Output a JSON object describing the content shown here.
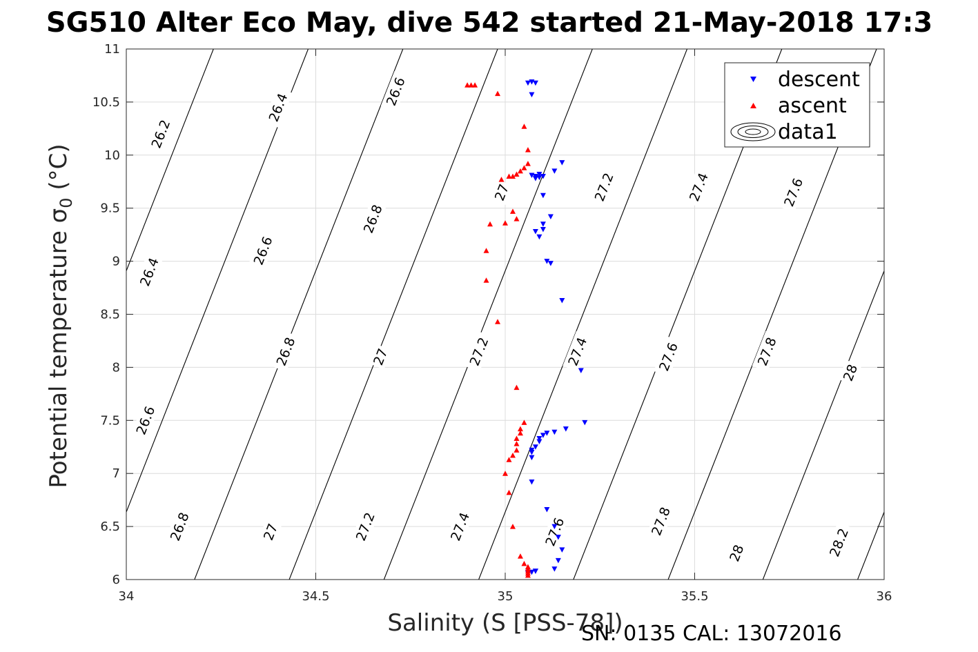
{
  "chart_data": {
    "type": "scatter",
    "title": "SG510 Alter Eco May, dive 542 started 21-May-2018 17:3",
    "xlabel": "Salinity (S [PSS-78])",
    "ylabel": "Potential temperature σ",
    "ylabel_sub": "0",
    "ylabel_unit": " (°C)",
    "footer": "SN: 0135  CAL: 13072016",
    "xlim": [
      34,
      36
    ],
    "ylim": [
      6,
      11
    ],
    "xticks": [
      34,
      34.5,
      35,
      35.5,
      36
    ],
    "xtick_labels": [
      "34",
      "34.5",
      "35",
      "35.5",
      "36"
    ],
    "yticks": [
      6,
      6.5,
      7,
      7.5,
      8,
      8.5,
      9,
      9.5,
      10,
      10.5,
      11
    ],
    "ytick_labels": [
      "6",
      "6.5",
      "7",
      "7.5",
      "8",
      "8.5",
      "9",
      "9.5",
      "10",
      "10.5",
      "11"
    ],
    "grid": true,
    "legend_position": "top-right",
    "legend": [
      "descent",
      "ascent",
      "data1"
    ],
    "colors": {
      "descent": "#0000ff",
      "ascent": "#ff0000",
      "contour": "#000000",
      "grid": "#dcdcdc"
    },
    "contours": {
      "levels": [
        26.2,
        26.4,
        26.6,
        26.8,
        27,
        27.2,
        27.4,
        27.6,
        27.8,
        28,
        28.2
      ],
      "salinity_at_theta6": [
        33.43,
        33.68,
        33.93,
        34.18,
        34.43,
        34.68,
        34.93,
        35.18,
        35.43,
        35.68,
        35.93
      ],
      "ds_dtheta": 0.11,
      "labels": [
        {
          "text": "26.2",
          "s": 34.09,
          "t": 10.2
        },
        {
          "text": "26.4",
          "s": 34.4,
          "t": 10.45
        },
        {
          "text": "26.6",
          "s": 34.71,
          "t": 10.6
        },
        {
          "text": "26.4",
          "s": 34.06,
          "t": 8.9
        },
        {
          "text": "26.6",
          "s": 34.36,
          "t": 9.1
        },
        {
          "text": "26.8",
          "s": 34.65,
          "t": 9.4
        },
        {
          "text": "27",
          "s": 34.99,
          "t": 9.65
        },
        {
          "text": "27.2",
          "s": 35.26,
          "t": 9.7
        },
        {
          "text": "27.4",
          "s": 35.51,
          "t": 9.7
        },
        {
          "text": "27.6",
          "s": 35.76,
          "t": 9.65
        },
        {
          "text": "26.6",
          "s": 34.05,
          "t": 7.5
        },
        {
          "text": "26.8",
          "s": 34.42,
          "t": 8.15
        },
        {
          "text": "27",
          "s": 34.67,
          "t": 8.1
        },
        {
          "text": "27.2",
          "s": 34.93,
          "t": 8.15
        },
        {
          "text": "27.4",
          "s": 35.19,
          "t": 8.15
        },
        {
          "text": "27.6",
          "s": 35.43,
          "t": 8.1
        },
        {
          "text": "27.8",
          "s": 35.69,
          "t": 8.15
        },
        {
          "text": "28",
          "s": 35.91,
          "t": 7.95
        },
        {
          "text": "26.8",
          "s": 34.14,
          "t": 6.5
        },
        {
          "text": "27",
          "s": 34.38,
          "t": 6.45
        },
        {
          "text": "27.2",
          "s": 34.63,
          "t": 6.5
        },
        {
          "text": "27.4",
          "s": 34.88,
          "t": 6.5
        },
        {
          "text": "27.6",
          "s": 35.13,
          "t": 6.45
        },
        {
          "text": "27.8",
          "s": 35.41,
          "t": 6.55
        },
        {
          "text": "28",
          "s": 35.61,
          "t": 6.25
        },
        {
          "text": "28.2",
          "s": 35.88,
          "t": 6.35
        }
      ]
    },
    "series": [
      {
        "name": "descent",
        "marker": "triangle-down",
        "x": [
          35.06,
          35.07,
          35.08,
          35.07,
          35.1,
          35.09,
          35.08,
          35.08,
          35.07,
          35.09,
          35.15,
          35.13,
          35.1,
          35.09,
          35.08,
          35.1,
          35.1,
          35.12,
          35.11,
          35.12,
          35.15,
          35.2,
          35.21,
          35.16,
          35.13,
          35.11,
          35.1,
          35.09,
          35.09,
          35.08,
          35.07,
          35.07,
          35.07,
          35.07,
          35.06,
          35.08,
          35.13,
          35.14,
          35.15,
          35.14,
          35.13,
          35.11,
          35.08,
          35.06,
          35.07
        ],
        "y": [
          10.68,
          10.69,
          10.68,
          10.57,
          9.8,
          9.79,
          9.78,
          9.8,
          9.81,
          9.82,
          9.93,
          9.85,
          9.62,
          9.23,
          9.28,
          9.3,
          9.35,
          9.42,
          9.0,
          8.98,
          8.63,
          7.97,
          7.48,
          7.42,
          7.39,
          7.38,
          7.36,
          7.33,
          7.3,
          7.25,
          7.22,
          7.2,
          7.15,
          6.92,
          6.07,
          6.08,
          6.1,
          6.18,
          6.28,
          6.4,
          6.5,
          6.66,
          6.08,
          6.06,
          6.07
        ]
      },
      {
        "name": "ascent",
        "marker": "triangle-up",
        "x": [
          34.91,
          34.92,
          34.9,
          34.98,
          35.05,
          35.06,
          35.06,
          35.05,
          35.04,
          35.03,
          35.02,
          35.01,
          34.99,
          35.02,
          35.03,
          35.0,
          34.96,
          34.95,
          34.95,
          34.98,
          35.03,
          35.05,
          35.04,
          35.04,
          35.03,
          35.03,
          35.03,
          35.02,
          35.01,
          35.0,
          35.01,
          35.02,
          35.04,
          35.05,
          35.06,
          35.06,
          35.06,
          35.06,
          35.06
        ],
        "y": [
          10.66,
          10.66,
          10.66,
          10.58,
          10.27,
          10.05,
          9.92,
          9.88,
          9.85,
          9.82,
          9.8,
          9.8,
          9.77,
          9.47,
          9.4,
          9.36,
          9.35,
          9.1,
          8.82,
          8.43,
          7.81,
          7.48,
          7.42,
          7.38,
          7.33,
          7.28,
          7.22,
          7.17,
          7.13,
          7.0,
          6.82,
          6.5,
          6.22,
          6.15,
          6.12,
          6.1,
          6.08,
          6.06,
          6.04
        ]
      }
    ]
  }
}
